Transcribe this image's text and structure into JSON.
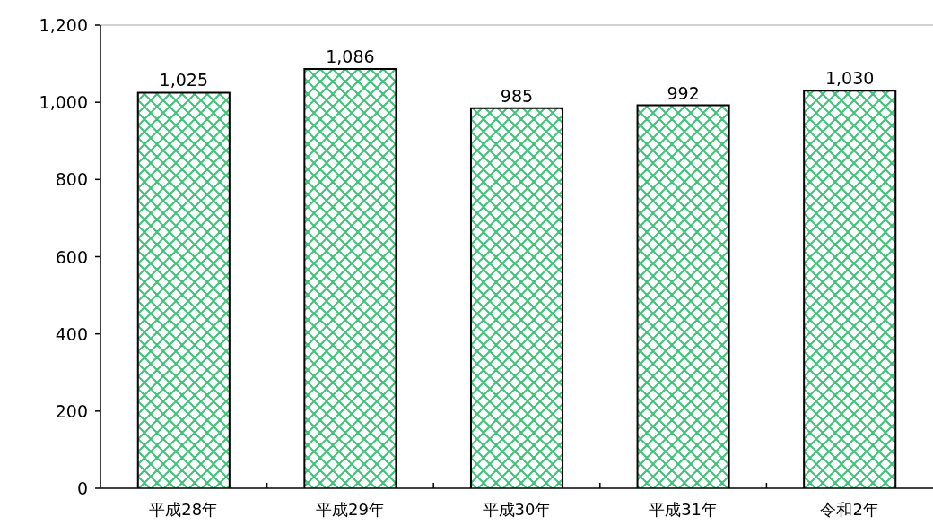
{
  "chart_data": {
    "type": "bar",
    "categories": [
      "平成28年",
      "平成29年",
      "平成30年",
      "平成31年",
      "令和2年"
    ],
    "values": [
      1025,
      1086,
      985,
      992,
      1030
    ],
    "color": "#3fc279",
    "ylim": [
      0,
      1200
    ],
    "yticks": [
      0,
      200,
      400,
      600,
      800,
      {
        "value": 1000,
        "label": "1,000"
      },
      {
        "value": 1200,
        "label": "1,200"
      }
    ],
    "value_labels": [
      "1,025",
      "1,086",
      "985",
      "992",
      "1,030"
    ]
  }
}
